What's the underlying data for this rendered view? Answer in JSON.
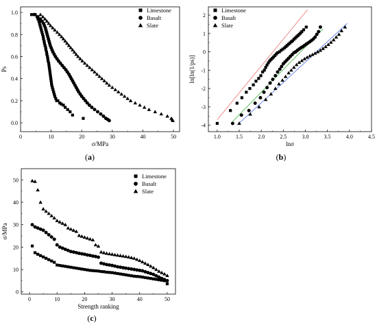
{
  "panels": [
    {
      "id": "a",
      "label_open": "(",
      "label_letter": "a",
      "label_close": ")",
      "xlabel": "σ/MPa",
      "ylabel": "Ps",
      "xticks": [
        "0",
        "10",
        "20",
        "30",
        "40",
        "50"
      ],
      "yticks": [
        "0.0",
        "0.2",
        "0.4",
        "0.6",
        "0.8",
        "1.0"
      ],
      "legend": [
        "Limestone",
        "Basalt",
        "Slate"
      ]
    },
    {
      "id": "b",
      "label_open": "(",
      "label_letter": "b",
      "label_close": ")",
      "xlabel": "lnσ",
      "ylabel": "ln[ln(1/ps)]",
      "xticks": [
        "1.0",
        "1.5",
        "2.0",
        "2.5",
        "3.0",
        "3.5",
        "4.0",
        "4.5"
      ],
      "yticks": [
        "-4",
        "-3",
        "-2",
        "-1",
        "0",
        "1",
        "2"
      ],
      "legend": [
        "Limestone",
        "Basalt",
        "Slate"
      ]
    },
    {
      "id": "c",
      "label_open": "(",
      "label_letter": "c",
      "label_close": ")",
      "xlabel": "Strength ranking",
      "ylabel": "σ/MPa",
      "xticks": [
        "0",
        "10",
        "20",
        "30",
        "40",
        "50"
      ],
      "yticks": [
        "0",
        "10",
        "20",
        "30",
        "40",
        "50"
      ],
      "legend": [
        "Limestone",
        "Basalt",
        "Slate"
      ]
    }
  ],
  "chart_data": [
    {
      "panel": "a",
      "type": "scatter",
      "xlim": [
        0,
        52
      ],
      "ylim": [
        -0.08,
        1.05
      ],
      "grid": false,
      "legend_position": "top-right",
      "series": [
        {
          "name": "Limestone",
          "marker": "square",
          "x": [
            3.6,
            4.8,
            5.4,
            5.7,
            6.0,
            6.2,
            6.4,
            6.6,
            6.8,
            7.0,
            7.2,
            7.4,
            7.5,
            7.7,
            7.8,
            8.0,
            8.2,
            8.3,
            8.5,
            8.6,
            8.8,
            8.9,
            9.0,
            9.2,
            9.3,
            9.4,
            9.5,
            9.6,
            9.7,
            9.8,
            9.9,
            10.0,
            10.1,
            10.2,
            10.4,
            10.6,
            10.8,
            11.0,
            11.2,
            11.5,
            11.8,
            12.2,
            12.8,
            13.3,
            14.0,
            14.6,
            15.4,
            16.2,
            17.0,
            20.5
          ],
          "y": [
            0.98,
            0.98,
            0.96,
            0.94,
            0.92,
            0.9,
            0.88,
            0.86,
            0.84,
            0.82,
            0.8,
            0.78,
            0.76,
            0.74,
            0.72,
            0.7,
            0.68,
            0.66,
            0.64,
            0.62,
            0.6,
            0.58,
            0.56,
            0.54,
            0.52,
            0.5,
            0.48,
            0.46,
            0.44,
            0.42,
            0.4,
            0.38,
            0.36,
            0.34,
            0.32,
            0.3,
            0.28,
            0.26,
            0.24,
            0.22,
            0.2,
            0.2,
            0.18,
            0.17,
            0.16,
            0.14,
            0.12,
            0.1,
            0.07,
            0.04
          ]
        },
        {
          "name": "Basalt",
          "marker": "circle",
          "x": [
            4.5,
            5.6,
            6.4,
            7.0,
            7.5,
            7.8,
            8.1,
            8.3,
            8.5,
            8.7,
            8.9,
            9.1,
            9.3,
            9.5,
            9.7,
            10.0,
            10.3,
            10.6,
            11.0,
            11.4,
            11.9,
            12.4,
            13.0,
            13.6,
            14.2,
            14.8,
            15.3,
            15.8,
            16.2,
            16.6,
            17.0,
            17.4,
            17.8,
            18.2,
            18.6,
            19.0,
            19.5,
            20.0,
            20.6,
            21.2,
            21.8,
            22.5,
            23.3,
            24.2,
            25.2,
            26.2,
            27.1,
            27.9,
            28.5,
            29.0
          ],
          "y": [
            0.98,
            0.96,
            0.94,
            0.92,
            0.9,
            0.88,
            0.86,
            0.84,
            0.82,
            0.8,
            0.78,
            0.76,
            0.74,
            0.72,
            0.7,
            0.68,
            0.66,
            0.64,
            0.62,
            0.6,
            0.58,
            0.56,
            0.54,
            0.52,
            0.5,
            0.48,
            0.46,
            0.44,
            0.42,
            0.4,
            0.38,
            0.36,
            0.34,
            0.32,
            0.3,
            0.28,
            0.26,
            0.24,
            0.22,
            0.2,
            0.18,
            0.16,
            0.14,
            0.12,
            0.1,
            0.08,
            0.06,
            0.04,
            0.03,
            0.02
          ]
        },
        {
          "name": "Slate",
          "marker": "triangle",
          "x": [
            6.5,
            7.3,
            8.0,
            8.6,
            9.2,
            9.8,
            10.5,
            11.2,
            12.0,
            12.7,
            13.4,
            14.0,
            14.6,
            15.2,
            15.8,
            16.4,
            17.0,
            17.6,
            18.2,
            18.8,
            19.5,
            20.2,
            21.0,
            21.8,
            22.6,
            23.4,
            24.2,
            25.0,
            25.8,
            26.6,
            27.4,
            28.2,
            29.0,
            30.0,
            31.0,
            32.0,
            33.0,
            34.0,
            35.0,
            36.0,
            37.5,
            39.0,
            40.5,
            42.0,
            44.0,
            46.0,
            48.0,
            49.3,
            49.6,
            49.8
          ],
          "y": [
            0.98,
            0.96,
            0.94,
            0.92,
            0.9,
            0.88,
            0.86,
            0.84,
            0.82,
            0.8,
            0.78,
            0.76,
            0.74,
            0.72,
            0.7,
            0.68,
            0.66,
            0.64,
            0.62,
            0.6,
            0.58,
            0.56,
            0.54,
            0.52,
            0.5,
            0.48,
            0.46,
            0.44,
            0.42,
            0.4,
            0.38,
            0.36,
            0.34,
            0.32,
            0.3,
            0.28,
            0.26,
            0.24,
            0.22,
            0.2,
            0.18,
            0.16,
            0.14,
            0.12,
            0.1,
            0.08,
            0.06,
            0.04,
            0.03,
            0.02
          ]
        }
      ]
    },
    {
      "panel": "b",
      "type": "scatter",
      "xlim": [
        0.8,
        4.5
      ],
      "ylim": [
        -4.35,
        2.45
      ],
      "grid": false,
      "legend_position": "top-left",
      "fit_lines": [
        {
          "series": "Limestone",
          "color": "#e87070",
          "x": [
            1.0,
            3.05
          ],
          "y": [
            -3.7,
            2.3
          ]
        },
        {
          "series": "Basalt",
          "color": "#33b233",
          "x": [
            1.35,
            3.4
          ],
          "y": [
            -3.8,
            1.25
          ]
        },
        {
          "series": "Slate",
          "color": "#4f6fe8",
          "x": [
            1.45,
            3.95
          ],
          "y": [
            -4.0,
            1.55
          ]
        }
      ],
      "series": [
        {
          "name": "Limestone",
          "marker": "square",
          "x": [
            1.0,
            1.3,
            1.45,
            1.56,
            1.66,
            1.74,
            1.82,
            1.88,
            1.94,
            1.99,
            2.03,
            2.07,
            2.1,
            2.13,
            2.16,
            2.19,
            2.22,
            2.25,
            2.28,
            2.31,
            2.34,
            2.37,
            2.41,
            2.45,
            2.49,
            2.53,
            2.56,
            2.59,
            2.62,
            2.65,
            2.68,
            2.71,
            2.74,
            2.77,
            2.8,
            2.83,
            2.86,
            2.89,
            2.92,
            2.96,
            3.02
          ],
          "y": [
            -3.9,
            -3.2,
            -2.8,
            -2.5,
            -2.2,
            -2.0,
            -1.8,
            -1.6,
            -1.45,
            -1.3,
            -1.1,
            -1.0,
            -0.85,
            -0.72,
            -0.6,
            -0.5,
            -0.42,
            -0.35,
            -0.28,
            -0.2,
            -0.12,
            -0.05,
            0.0,
            0.08,
            0.15,
            0.22,
            0.29,
            0.35,
            0.42,
            0.48,
            0.55,
            0.6,
            0.68,
            0.75,
            0.82,
            0.88,
            0.95,
            1.02,
            1.1,
            1.2,
            1.35
          ]
        },
        {
          "name": "Basalt",
          "marker": "circle",
          "x": [
            1.35,
            1.55,
            1.72,
            1.86,
            1.98,
            2.06,
            2.13,
            2.2,
            2.26,
            2.32,
            2.37,
            2.42,
            2.46,
            2.5,
            2.54,
            2.58,
            2.62,
            2.66,
            2.7,
            2.74,
            2.78,
            2.82,
            2.86,
            2.9,
            2.94,
            2.98,
            3.02,
            3.06,
            3.1,
            3.14,
            3.18,
            3.22,
            3.26,
            3.3,
            3.34
          ],
          "y": [
            -3.9,
            -3.45,
            -3.2,
            -2.8,
            -2.5,
            -2.2,
            -1.95,
            -1.7,
            -1.5,
            -1.3,
            -1.1,
            -0.95,
            -0.8,
            -0.65,
            -0.55,
            -0.45,
            -0.35,
            -0.25,
            -0.15,
            -0.05,
            0.0,
            0.08,
            0.15,
            0.22,
            0.28,
            0.35,
            0.42,
            0.48,
            0.55,
            0.62,
            0.7,
            0.8,
            0.95,
            1.1,
            1.35
          ]
        },
        {
          "name": "Slate",
          "marker": "triangle",
          "x": [
            1.5,
            1.75,
            1.95,
            2.1,
            2.22,
            2.32,
            2.4,
            2.48,
            2.55,
            2.62,
            2.68,
            2.74,
            2.8,
            2.86,
            2.92,
            2.98,
            3.04,
            3.1,
            3.16,
            3.22,
            3.28,
            3.34,
            3.4,
            3.46,
            3.52,
            3.58,
            3.64,
            3.7,
            3.76,
            3.82,
            3.9
          ],
          "y": [
            -3.9,
            -3.4,
            -3.0,
            -2.6,
            -2.3,
            -2.0,
            -1.75,
            -1.55,
            -1.35,
            -1.15,
            -1.0,
            -0.85,
            -0.7,
            -0.58,
            -0.48,
            -0.38,
            -0.3,
            -0.22,
            -0.15,
            -0.08,
            0.0,
            0.08,
            0.18,
            0.28,
            0.4,
            0.52,
            0.65,
            0.8,
            0.95,
            1.15,
            1.35
          ]
        }
      ]
    },
    {
      "panel": "c",
      "type": "scatter",
      "xlim": [
        -3,
        53
      ],
      "ylim": [
        -1,
        55
      ],
      "grid": false,
      "legend_position": "top-right",
      "series": [
        {
          "name": "Limestone",
          "marker": "square",
          "x": [
            1,
            2,
            3,
            4,
            5,
            6,
            7,
            8,
            9,
            10,
            11,
            12,
            13,
            14,
            15,
            16,
            17,
            18,
            19,
            20,
            21,
            22,
            23,
            24,
            25,
            26,
            27,
            28,
            29,
            30,
            31,
            32,
            33,
            34,
            35,
            36,
            37,
            38,
            39,
            40,
            41,
            42,
            43,
            44,
            45,
            46,
            47,
            48,
            49,
            50
          ],
          "y": [
            20.5,
            17.5,
            16.8,
            16.2,
            15.6,
            15.0,
            14.4,
            13.8,
            13.2,
            12.0,
            11.8,
            11.6,
            11.4,
            11.2,
            11.0,
            10.8,
            10.6,
            10.4,
            10.2,
            10.0,
            9.8,
            9.6,
            9.5,
            9.4,
            9.3,
            9.1,
            9.0,
            8.8,
            8.7,
            8.6,
            8.4,
            8.2,
            8.0,
            7.8,
            7.6,
            7.4,
            7.2,
            7.0,
            6.9,
            6.8,
            6.6,
            6.4,
            6.2,
            6.0,
            5.8,
            5.6,
            5.4,
            5.2,
            5.0,
            3.6
          ]
        },
        {
          "name": "Basalt",
          "marker": "circle",
          "x": [
            1,
            2,
            3,
            4,
            5,
            6,
            7,
            8,
            9,
            10,
            11,
            12,
            13,
            14,
            15,
            16,
            17,
            18,
            19,
            20,
            21,
            22,
            23,
            24,
            25,
            26,
            27,
            28,
            29,
            30,
            31,
            32,
            33,
            34,
            35,
            36,
            37,
            38,
            39,
            40,
            41,
            42,
            43,
            44,
            45,
            46,
            47,
            48,
            49,
            50
          ],
          "y": [
            30.0,
            29.0,
            28.5,
            28.0,
            27.5,
            26.5,
            25.5,
            24.5,
            23.5,
            21.0,
            20.0,
            19.5,
            19.0,
            18.5,
            18.0,
            17.8,
            17.5,
            17.2,
            17.0,
            16.8,
            16.5,
            16.3,
            16.0,
            15.8,
            15.5,
            12.8,
            12.5,
            12.2,
            12.0,
            11.8,
            11.5,
            11.2,
            11.0,
            10.8,
            10.6,
            10.4,
            10.2,
            10.0,
            9.8,
            9.6,
            9.4,
            9.0,
            8.6,
            8.2,
            7.8,
            7.2,
            6.6,
            6.0,
            5.5,
            5.0
          ]
        },
        {
          "name": "Slate",
          "marker": "triangle",
          "x": [
            1,
            2,
            3,
            4,
            5,
            6,
            7,
            8,
            9,
            10,
            11,
            12,
            13,
            14,
            15,
            16,
            17,
            18,
            19,
            20,
            21,
            22,
            23,
            24,
            25,
            26,
            27,
            28,
            29,
            30,
            31,
            32,
            33,
            34,
            35,
            36,
            37,
            38,
            39,
            40,
            41,
            42,
            43,
            44,
            45,
            46,
            47,
            48,
            49,
            50
          ],
          "y": [
            49.6,
            49.3,
            45.5,
            40.0,
            37.0,
            36.0,
            35.0,
            34.0,
            33.0,
            31.8,
            31.2,
            30.6,
            30.0,
            28.5,
            28.0,
            27.5,
            27.0,
            25.2,
            24.8,
            24.4,
            24.0,
            23.6,
            23.2,
            21.0,
            20.4,
            17.8,
            17.5,
            17.2,
            17.0,
            16.8,
            16.6,
            16.4,
            16.2,
            16.0,
            15.8,
            15.6,
            15.3,
            15.0,
            14.5,
            14.0,
            13.4,
            12.8,
            12.2,
            11.5,
            10.8,
            10.0,
            9.2,
            8.6,
            8.0,
            7.3
          ]
        }
      ]
    }
  ]
}
